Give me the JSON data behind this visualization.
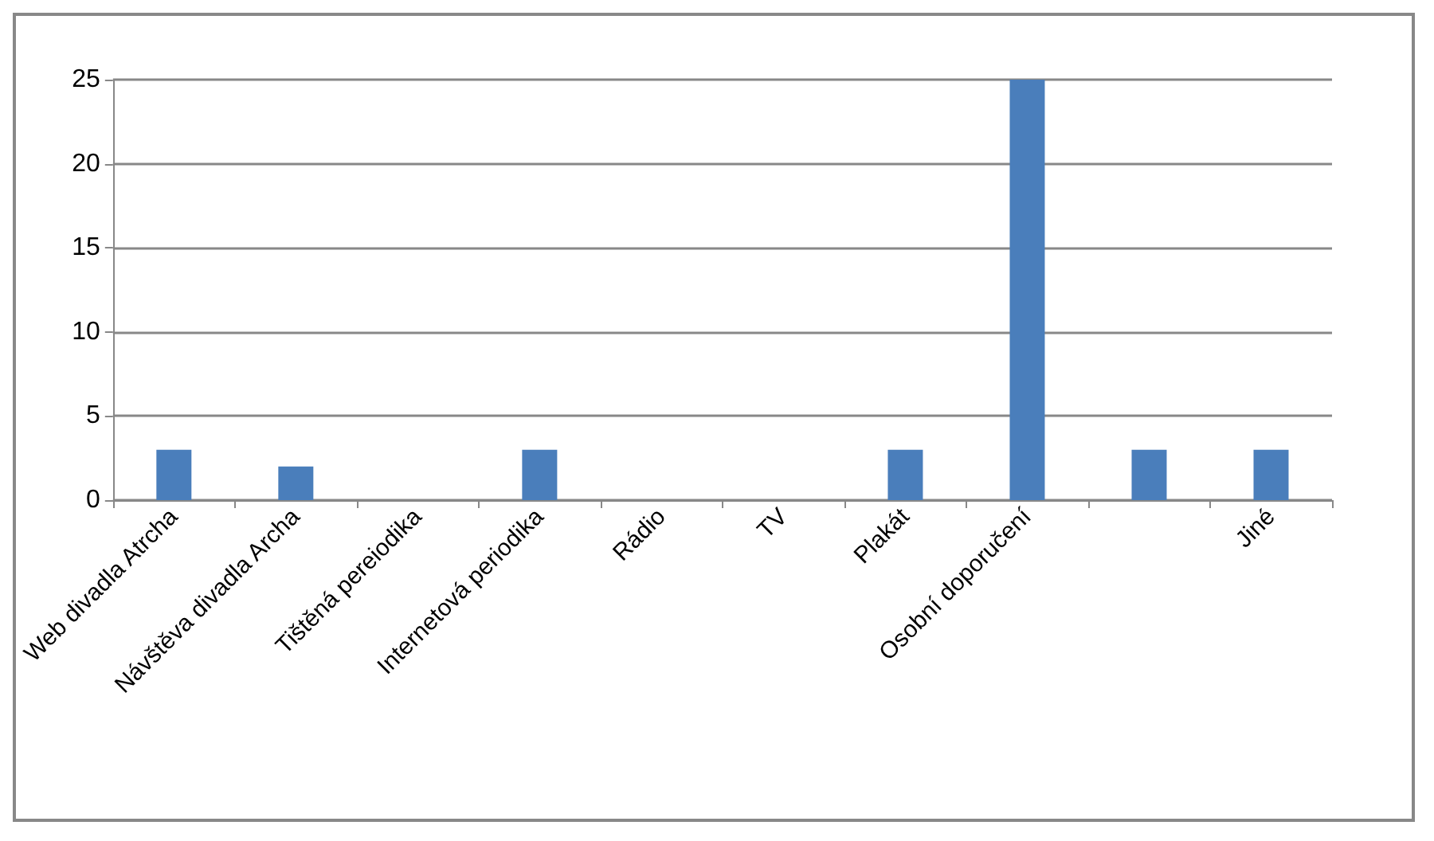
{
  "chart_data": {
    "type": "bar",
    "categories": [
      "Web divadla Atrcha",
      "Návštěva divadla Archa",
      "Tištěná pereiodika",
      "Internetová periodika",
      "Rádio",
      "TV",
      "Plakát",
      "Osobní doporučení",
      null,
      "Jiné"
    ],
    "values": [
      3,
      2,
      0,
      3,
      0,
      0,
      3,
      25,
      3,
      3
    ],
    "color": "#4a7ebb",
    "ylim": [
      0,
      25
    ],
    "yticks": [
      0,
      5,
      10,
      15,
      20,
      25
    ],
    "grid": "y"
  }
}
